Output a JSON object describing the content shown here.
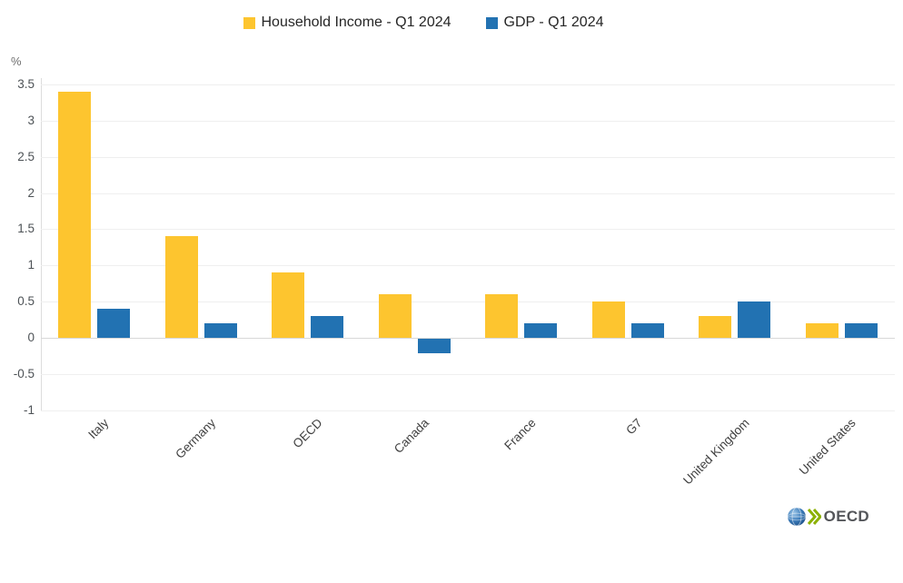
{
  "chart_data": {
    "type": "bar",
    "categories": [
      "Italy",
      "Germany",
      "OECD",
      "Canada",
      "France",
      "G7",
      "United Kingdom",
      "United States"
    ],
    "series": [
      {
        "name": "Household Income - Q1 2024",
        "color": "#FDC52F",
        "values": [
          3.4,
          1.4,
          0.9,
          0.6,
          0.6,
          0.5,
          0.3,
          0.2
        ]
      },
      {
        "name": "GDP - Q1 2024",
        "color": "#2272B2",
        "values": [
          0.4,
          0.2,
          0.3,
          -0.2,
          0.2,
          0.2,
          0.5,
          0.2
        ]
      }
    ],
    "title": "",
    "xlabel": "",
    "ylabel": "%",
    "ylim": [
      -1,
      3.5
    ],
    "y_ticks": [
      3.5,
      3,
      2.5,
      2,
      1.5,
      1,
      0.5,
      0,
      -0.5,
      -1
    ],
    "grid": true,
    "legend_position": "top"
  },
  "colors": {
    "background": "#ffffff",
    "gridline": "#efefef",
    "zero_line": "#d8d8d8",
    "axis_line": "#dcdcdc",
    "household_income": "#FDC52F",
    "gdp": "#2272B2",
    "logo_chevron_green": "#8CB104",
    "logo_globe_blue": "#2E6DA8"
  },
  "logo": {
    "text": "OECD",
    "globe_icon": "oecd-globe-icon",
    "chevrons_icon": "double-chevron-icon"
  }
}
